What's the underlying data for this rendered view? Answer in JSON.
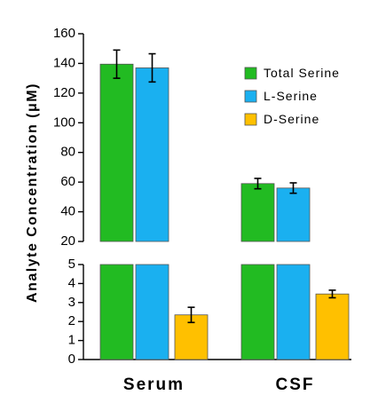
{
  "chart_data": {
    "type": "bar",
    "broken_axis": true,
    "categories": [
      "Serum",
      "CSF"
    ],
    "ylabel": "Analyte Concentration (μM)",
    "upper_ylim": [
      20,
      160
    ],
    "upper_yticks": [
      "20",
      "40",
      "60",
      "80",
      "100",
      "120",
      "140",
      "160"
    ],
    "lower_ylim": [
      0,
      5
    ],
    "lower_yticks": [
      "0",
      "1",
      "2",
      "3",
      "4",
      "5"
    ],
    "legend_position": "right",
    "series": [
      {
        "name": "Total Serine",
        "color": "#22bb22",
        "values": [
          139.5,
          59
        ],
        "errors": [
          9.5,
          3.5
        ]
      },
      {
        "name": "L-Serine",
        "color": "#1ab0f0",
        "values": [
          137,
          56
        ],
        "errors": [
          9.5,
          3.5
        ]
      },
      {
        "name": "D-Serine",
        "color": "#ffc000",
        "values": [
          2.35,
          3.45
        ],
        "errors": [
          0.4,
          0.2
        ]
      }
    ]
  }
}
